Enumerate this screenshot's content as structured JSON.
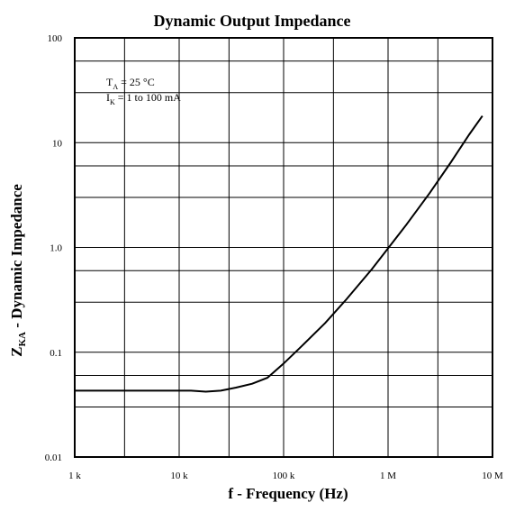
{
  "chart_data": {
    "type": "line",
    "title": "Dynamic Output Impedance",
    "xlabel": "f - Frequency (Hz)",
    "ylabel": {
      "main": "Z",
      "subscript": "KA",
      "rest": " - Dynamic Impedance"
    },
    "xscale": "log",
    "yscale": "log",
    "xlim": [
      1000,
      10000000
    ],
    "ylim": [
      0.01,
      100
    ],
    "x_ticks": [
      {
        "value": 1000,
        "label": "1 k"
      },
      {
        "value": 10000,
        "label": "10 k"
      },
      {
        "value": 100000,
        "label": "100 k"
      },
      {
        "value": 1000000,
        "label": "1 M"
      },
      {
        "value": 10000000,
        "label": "10 M"
      }
    ],
    "y_ticks": [
      {
        "value": 0.01,
        "label": "0.01"
      },
      {
        "value": 0.1,
        "label": "0.1"
      },
      {
        "value": 1,
        "label": "1.0"
      },
      {
        "value": 10,
        "label": "10"
      },
      {
        "value": 100,
        "label": "100"
      }
    ],
    "x_minor_grid": [
      3000,
      30000,
      300000,
      3000000
    ],
    "y_minor_grid": [
      0.03,
      0.06,
      0.3,
      0.6,
      3,
      6,
      30,
      60
    ],
    "grid": true,
    "annotations": [
      {
        "symbol": "T",
        "subscript": "A",
        "text": " = 25 °C"
      },
      {
        "symbol": "I",
        "subscript": "K",
        "text": " = 1 to 100 mA"
      }
    ],
    "series": [
      {
        "x": [
          1000,
          3000,
          10000,
          13000,
          18000,
          25000,
          35000,
          50000,
          70000,
          100000,
          150000,
          250000,
          400000,
          700000,
          1000000,
          1500000,
          2500000,
          4000000,
          6000000,
          8000000
        ],
        "y": [
          0.043,
          0.043,
          0.043,
          0.043,
          0.042,
          0.043,
          0.046,
          0.05,
          0.057,
          0.078,
          0.115,
          0.19,
          0.32,
          0.62,
          0.98,
          1.65,
          3.3,
          6.5,
          12.0,
          18.0
        ]
      }
    ]
  }
}
